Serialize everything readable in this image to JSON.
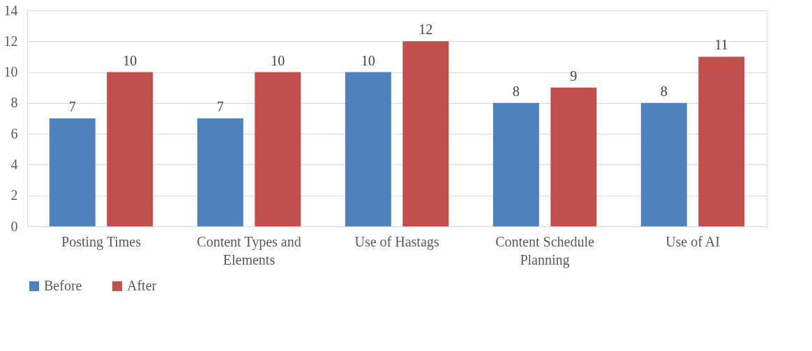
{
  "chart_data": {
    "type": "bar",
    "categories": [
      "Posting Times",
      "Content Types and Elements",
      "Use of Hastags",
      "Content Schedule Planning",
      "Use of AI"
    ],
    "series": [
      {
        "name": "Before",
        "color": "#4f81bd",
        "values": [
          7,
          7,
          10,
          8,
          8
        ]
      },
      {
        "name": "After",
        "color": "#c0504d",
        "values": [
          10,
          10,
          12,
          9,
          11
        ]
      }
    ],
    "ylim": [
      0,
      14
    ],
    "yticks": [
      0,
      2,
      4,
      6,
      8,
      10,
      12,
      14
    ],
    "grid": "y",
    "legend": "bottom",
    "data_labels": true
  }
}
